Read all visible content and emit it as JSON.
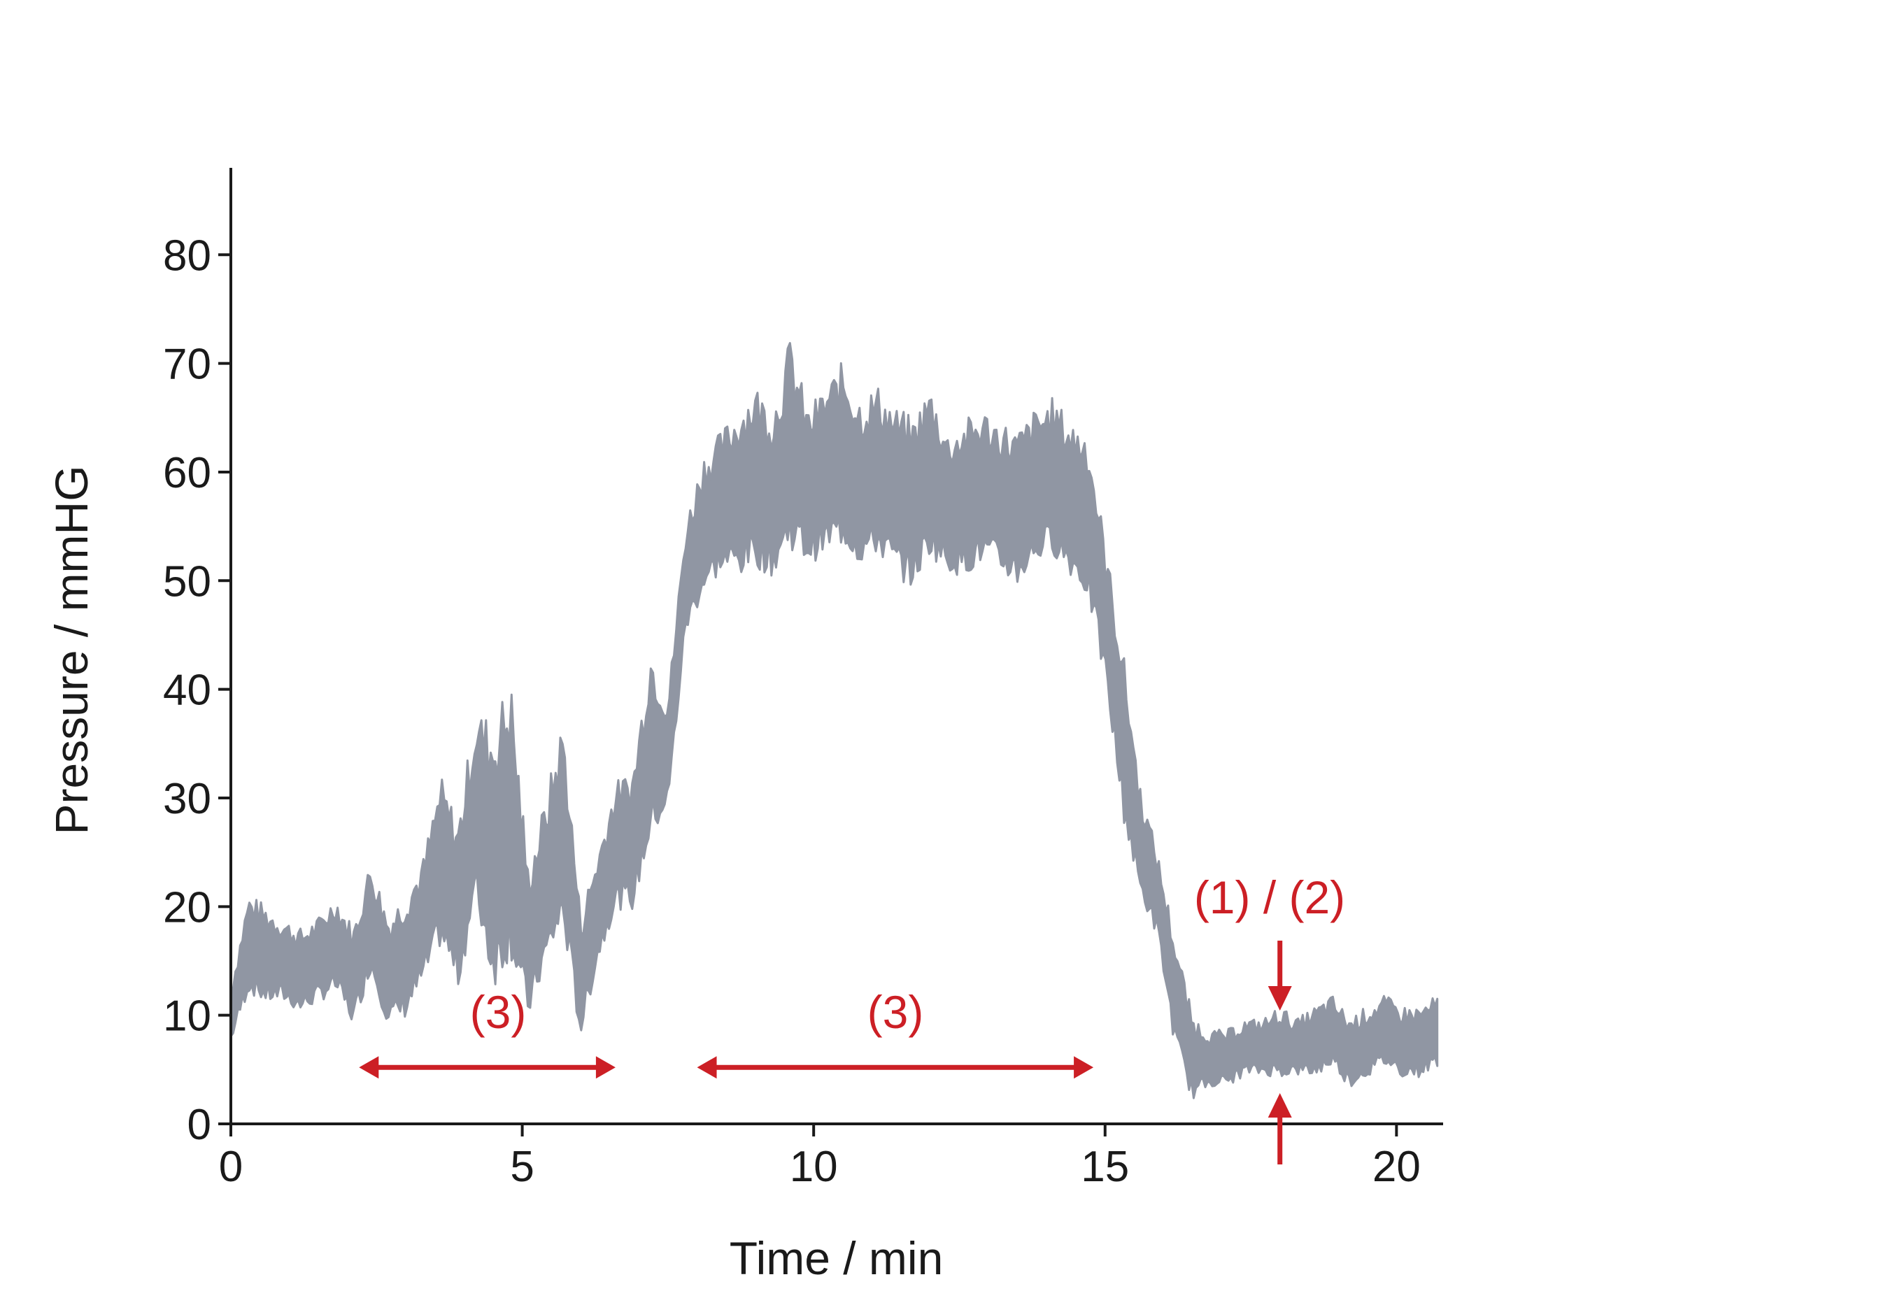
{
  "chart_data": {
    "type": "area",
    "xlabel": "Time / min",
    "ylabel": "Pressure / mmHG",
    "xlim": [
      0,
      20.8
    ],
    "ylim": [
      0,
      88
    ],
    "xticks": [
      0,
      5,
      10,
      15,
      20
    ],
    "yticks": [
      0,
      10,
      20,
      30,
      40,
      50,
      60,
      70,
      80
    ],
    "series": [
      {
        "color": "#9096a3",
        "x": [
          0.0,
          0.3,
          0.6,
          0.9,
          1.2,
          1.5,
          1.8,
          2.1,
          2.4,
          2.7,
          3.0,
          3.3,
          3.6,
          3.9,
          4.2,
          4.5,
          4.8,
          5.1,
          5.4,
          5.7,
          6.0,
          6.3,
          6.6,
          6.9,
          7.2,
          7.5,
          7.8,
          8.1,
          8.4,
          8.7,
          9.0,
          9.3,
          9.6,
          9.9,
          10.2,
          10.5,
          10.8,
          11.1,
          11.4,
          11.7,
          12.0,
          12.3,
          12.6,
          12.9,
          13.2,
          13.5,
          13.8,
          14.1,
          14.4,
          14.7,
          15.0,
          15.3,
          15.6,
          15.9,
          16.2,
          16.5,
          16.8,
          17.1,
          17.4,
          17.7,
          18.0,
          18.3,
          18.6,
          18.9,
          19.2,
          19.5,
          19.8,
          20.1,
          20.4,
          20.7
        ],
        "upper": [
          12,
          20,
          19,
          18,
          17,
          18,
          20,
          17,
          23,
          18,
          20,
          23,
          30,
          26,
          36,
          34,
          38,
          22,
          28,
          35,
          18,
          24,
          30,
          31,
          42,
          38,
          54,
          60,
          62,
          64,
          66,
          64,
          70,
          64,
          66,
          68,
          65,
          66,
          64,
          63,
          66,
          62,
          63,
          64,
          63,
          62,
          64,
          65,
          63,
          62,
          52,
          42,
          30,
          24,
          16,
          9,
          8,
          8,
          9,
          9,
          10,
          9,
          10,
          11,
          9,
          10,
          11,
          10,
          10,
          11
        ],
        "lower": [
          8,
          13,
          12,
          12,
          11,
          12,
          13,
          10,
          15,
          10,
          11,
          14,
          18,
          14,
          22,
          15,
          18,
          11,
          16,
          20,
          9,
          16,
          21,
          21,
          28,
          30,
          46,
          50,
          52,
          52,
          53,
          52,
          55,
          53,
          54,
          55,
          53,
          54,
          52,
          51,
          54,
          52,
          52,
          53,
          52,
          51,
          53,
          54,
          52,
          50,
          42,
          30,
          22,
          18,
          8,
          3,
          4,
          4,
          5,
          5,
          5,
          5,
          5,
          6,
          4,
          5,
          6,
          5,
          5,
          6
        ]
      }
    ],
    "annotations": {
      "phase_left": {
        "label": "(3)",
        "from": 2.2,
        "to": 6.6,
        "y": 5.2
      },
      "phase_mid": {
        "label": "(3)",
        "from": 8.0,
        "to": 14.8,
        "y": 5.2
      },
      "marker": {
        "label": "(1) / (2)",
        "x": 18.0
      }
    }
  }
}
